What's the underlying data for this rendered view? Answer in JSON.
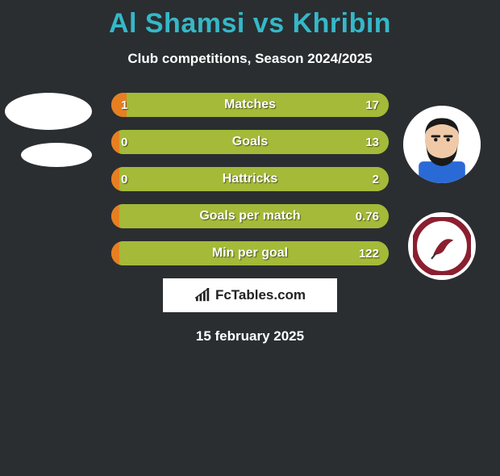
{
  "title": {
    "name1": "Al Shamsi",
    "vs": "vs",
    "name2": "Khribin",
    "color": "#35b8c8"
  },
  "subtitle": "Club competitions, Season 2024/2025",
  "colors": {
    "background": "#2a2e31",
    "left": "#e77f21",
    "right": "#a4ba38",
    "track": "#a4ba38"
  },
  "bars": [
    {
      "label": "Matches",
      "left_val": "1",
      "right_val": "17",
      "left_pct": 5.6,
      "right_pct": 94.4
    },
    {
      "label": "Goals",
      "left_val": "0",
      "right_val": "13",
      "left_pct": 3.0,
      "right_pct": 97.0
    },
    {
      "label": "Hattricks",
      "left_val": "0",
      "right_val": "2",
      "left_pct": 3.0,
      "right_pct": 97.0
    },
    {
      "label": "Goals per match",
      "left_val": "",
      "right_val": "0.76",
      "left_pct": 3.0,
      "right_pct": 97.0
    },
    {
      "label": "Min per goal",
      "left_val": "",
      "right_val": "122",
      "left_pct": 3.0,
      "right_pct": 97.0
    }
  ],
  "watermark": "FcTables.com",
  "date": "15 february 2025",
  "avatars": {
    "right_player_skin": "#f0c9a8",
    "right_player_hair": "#1a1a1a",
    "right_player_shirt": "#2a6ad6",
    "club_ring": "#8a1f2f",
    "club_inner": "#ffffff"
  }
}
